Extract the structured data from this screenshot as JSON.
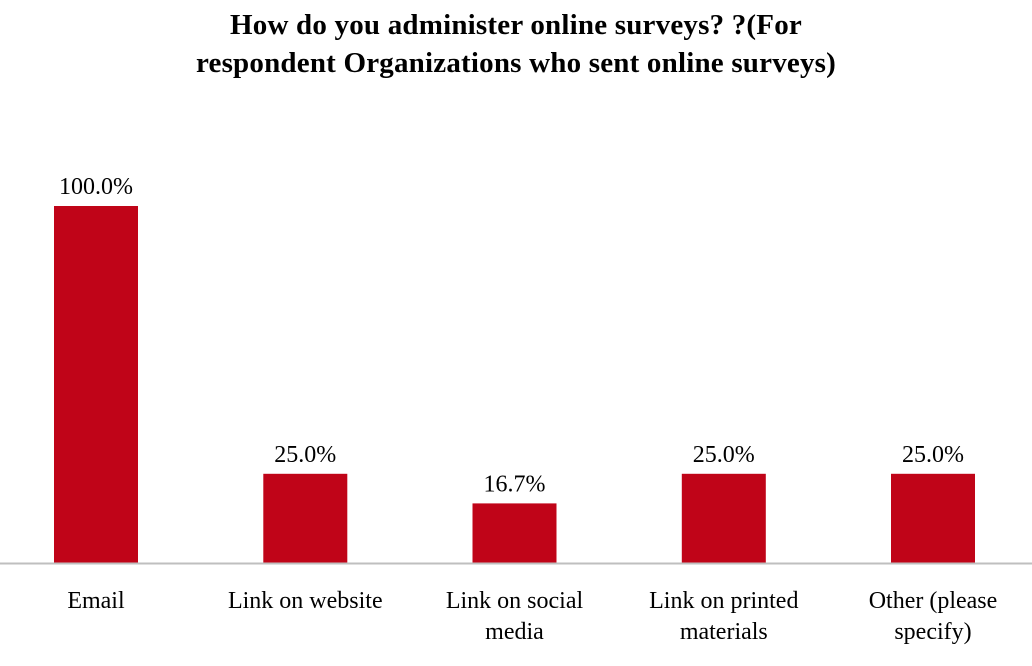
{
  "chart_data": {
    "type": "bar",
    "title_lines": [
      "How do you administer online surveys? ?(For",
      "respondent Organizations who sent online surveys)"
    ],
    "categories": [
      [
        "Email"
      ],
      [
        "Link on website"
      ],
      [
        "Link on social",
        "media"
      ],
      [
        "Link on printed",
        "materials"
      ],
      [
        "Other (please",
        "specify)"
      ]
    ],
    "values": [
      100.0,
      25.0,
      16.7,
      25.0,
      25.0
    ],
    "value_labels": [
      "100.0%",
      "25.0%",
      "16.7%",
      "25.0%",
      "25.0%"
    ],
    "ylim": [
      0,
      100
    ],
    "grid": false,
    "legend": "none",
    "bar_color": "#c00418",
    "axis_color": "#bfbfbf"
  }
}
